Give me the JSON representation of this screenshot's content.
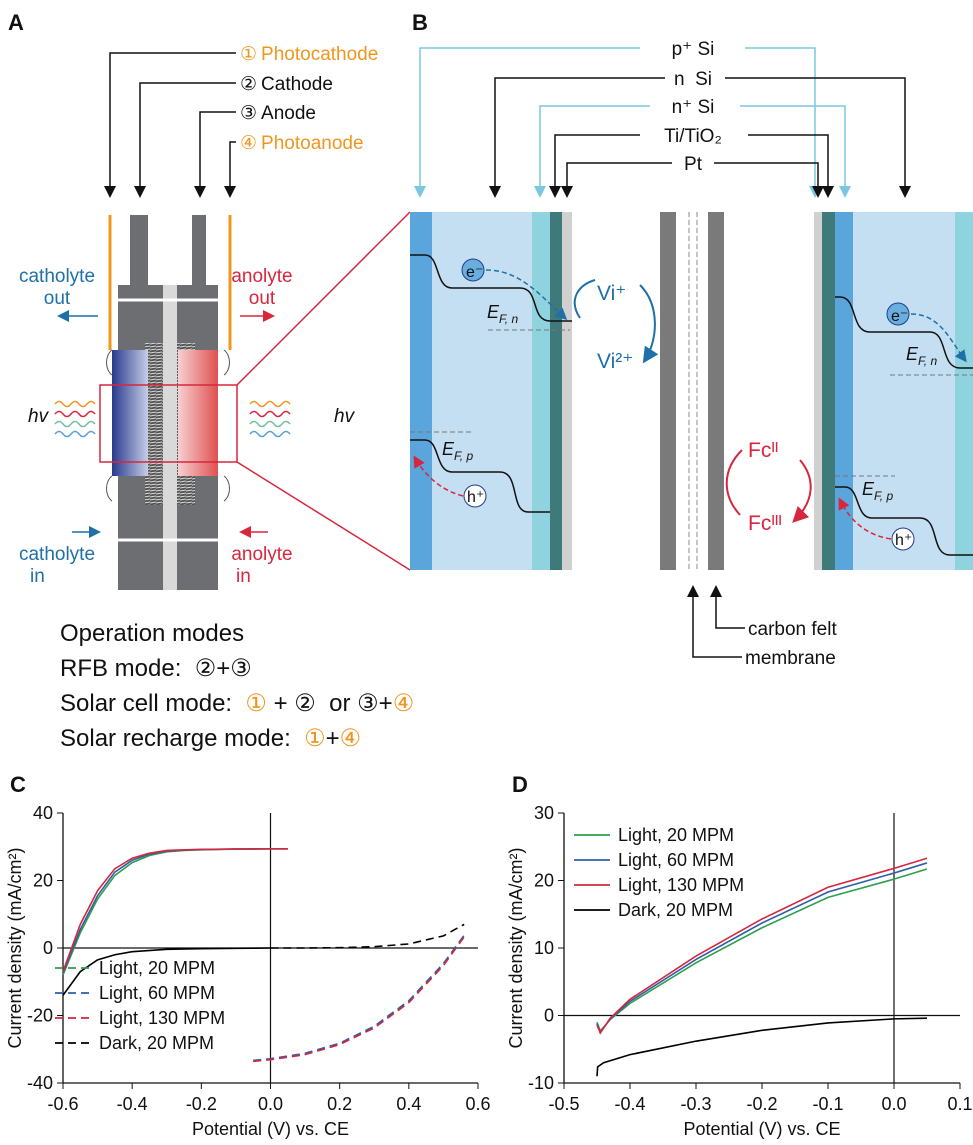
{
  "panel_a": {
    "label": "A",
    "electrodes": [
      {
        "number": "①",
        "name": "Photocathode"
      },
      {
        "number": "②",
        "name": "Cathode"
      },
      {
        "number": "③",
        "name": "Anode"
      },
      {
        "number": "④",
        "name": "Photoanode"
      }
    ],
    "catholyte_out": [
      "catholyte",
      "out"
    ],
    "anolyte_out": [
      "anolyte",
      "out"
    ],
    "catholyte_in": [
      "catholyte",
      "in"
    ],
    "anolyte_in": [
      "anolyte",
      "in"
    ],
    "light_left": "hv",
    "light_right": "hv"
  },
  "panel_b": {
    "label": "B",
    "layers": [
      "p⁺ Si",
      "n  Si",
      "n⁺ Si",
      "Ti/TiO₂",
      "Pt"
    ],
    "electron_left": "e⁻",
    "electron_right": "e⁻",
    "hole_left": "h⁺",
    "hole_right": "h⁺",
    "fermi_n_left": {
      "symbol": "E",
      "subscript": "F, n"
    },
    "fermi_p_left": {
      "symbol": "E",
      "subscript": "F, p"
    },
    "fermi_n_right": {
      "symbol": "E",
      "subscript": "F, n"
    },
    "fermi_p_right": {
      "symbol": "E",
      "subscript": "F, p"
    },
    "vi_plus": "Vi⁺",
    "vi_2plus": "Vi²⁺",
    "fc_ii": "Fcᴵᴵ",
    "fc_iii": "Fcᴵᴵᴵ",
    "carbon_felt": "carbon felt",
    "membrane": "membrane"
  },
  "operation_modes": {
    "title": "Operation modes",
    "modes": [
      [
        "RFB mode:  ",
        "②+③"
      ],
      [
        "Solar cell mode:  ",
        "①",
        " + ②  or ③+",
        "④"
      ],
      [
        "Solar recharge mode:  ",
        "①",
        "+",
        "④"
      ]
    ]
  },
  "chart_data": [
    {
      "type": "line",
      "panel_label": "C",
      "x_label": "Potential (V) vs. CE",
      "y_label": "Current density (mA/cm²)",
      "xlim": [
        -0.6,
        0.6
      ],
      "xticks": [
        -0.6,
        -0.4,
        -0.2,
        {
          "value": 0,
          "label": "0.0"
        },
        0.2,
        0.4,
        0.6
      ],
      "ylim": [
        -40,
        40
      ],
      "yticks": [
        -40,
        -20,
        0,
        20,
        40
      ],
      "zero_lines": true,
      "legend": "lower left",
      "series": [
        {
          "name": "Light, 20 MPM",
          "color": "#2e9e4f",
          "segments": [
            {
              "style": "solid",
              "x": [
                -0.6,
                -0.55,
                -0.5,
                -0.45,
                -0.4,
                -0.35,
                -0.3,
                -0.25,
                -0.2,
                -0.1,
                0,
                0.05
              ],
              "values": [
                -8,
                4.5,
                14.5,
                21.5,
                25.3,
                27.4,
                28.5,
                28.9,
                29.1,
                29.3,
                29.4,
                29.4
              ]
            },
            {
              "style": "dashed",
              "x": [
                -0.05,
                0,
                0.1,
                0.2,
                0.3,
                0.4,
                0.5,
                0.56
              ],
              "values": [
                -33.5,
                -33,
                -31.5,
                -28.5,
                -23.5,
                -16,
                -5,
                3.5
              ]
            }
          ]
        },
        {
          "name": "Light, 60 MPM",
          "color": "#2f5fa8",
          "segments": [
            {
              "style": "solid",
              "x": [
                -0.6,
                -0.55,
                -0.5,
                -0.45,
                -0.4,
                -0.35,
                -0.3,
                -0.25,
                -0.2,
                -0.1,
                0,
                0.05
              ],
              "values": [
                -7.5,
                5.5,
                15.5,
                22.5,
                26,
                27.8,
                28.7,
                29,
                29.2,
                29.3,
                29.4,
                29.4
              ]
            },
            {
              "style": "dashed",
              "x": [
                -0.05,
                0,
                0.1,
                0.2,
                0.3,
                0.4,
                0.5,
                0.56
              ],
              "values": [
                -33.3,
                -32.8,
                -31.2,
                -28.2,
                -23.2,
                -15.6,
                -4.6,
                3.8
              ]
            }
          ]
        },
        {
          "name": "Light, 130 MPM",
          "color": "#d7263d",
          "segments": [
            {
              "style": "solid",
              "x": [
                -0.6,
                -0.55,
                -0.5,
                -0.45,
                -0.4,
                -0.35,
                -0.3,
                -0.25,
                -0.2,
                -0.1,
                0,
                0.05
              ],
              "values": [
                -7,
                7,
                17,
                23.5,
                26.6,
                28.1,
                28.9,
                29.1,
                29.2,
                29.3,
                29.4,
                29.4
              ]
            },
            {
              "style": "dashed",
              "x": [
                -0.05,
                0,
                0.1,
                0.2,
                0.3,
                0.4,
                0.5,
                0.56
              ],
              "values": [
                -33.6,
                -33.1,
                -31.6,
                -28.6,
                -23.7,
                -16.2,
                -5.2,
                3.3
              ]
            }
          ]
        },
        {
          "name": "Dark, 20 MPM",
          "color": "#000000",
          "segments": [
            {
              "style": "solid",
              "x": [
                -0.6,
                -0.55,
                -0.5,
                -0.45,
                -0.4,
                -0.3,
                -0.2,
                -0.1,
                0
              ],
              "values": [
                -14,
                -7,
                -3.5,
                -2,
                -1.1,
                -0.4,
                -0.2,
                -0.1,
                0
              ]
            },
            {
              "style": "dashed",
              "x": [
                0,
                0.1,
                0.2,
                0.3,
                0.4,
                0.5,
                0.56
              ],
              "values": [
                0,
                0,
                0.1,
                0.4,
                1.2,
                3.6,
                7
              ]
            }
          ]
        }
      ]
    },
    {
      "type": "line",
      "panel_label": "D",
      "x_label": "Potential (V) vs. CE",
      "y_label": "Current density (mA/cm²)",
      "xlim": [
        -0.5,
        0.1
      ],
      "xticks": [
        -0.5,
        -0.4,
        -0.3,
        -0.2,
        -0.1,
        {
          "value": 0,
          "label": "0.0"
        },
        0.1
      ],
      "ylim": [
        -10,
        30
      ],
      "yticks": [
        -10,
        0,
        10,
        20,
        30
      ],
      "zero_lines": true,
      "legend": "upper left",
      "series": [
        {
          "name": "Light, 20 MPM",
          "color": "#2e9e4f",
          "segments": [
            {
              "style": "solid",
              "x": [
                -0.45,
                -0.445,
                -0.43,
                -0.4,
                -0.3,
                -0.2,
                -0.1,
                0,
                0.05
              ],
              "values": [
                -1,
                -2.3,
                -0.6,
                1.8,
                7.8,
                13,
                17.5,
                20.2,
                21.7
              ]
            }
          ]
        },
        {
          "name": "Light, 60 MPM",
          "color": "#2f5fa8",
          "segments": [
            {
              "style": "solid",
              "x": [
                -0.45,
                -0.445,
                -0.43,
                -0.4,
                -0.3,
                -0.2,
                -0.1,
                0,
                0.05
              ],
              "values": [
                -1.2,
                -2.5,
                -0.5,
                2.1,
                8.3,
                13.7,
                18.3,
                21.1,
                22.6
              ]
            }
          ]
        },
        {
          "name": "Light, 130 MPM",
          "color": "#d7263d",
          "segments": [
            {
              "style": "solid",
              "x": [
                -0.45,
                -0.445,
                -0.43,
                -0.4,
                -0.3,
                -0.2,
                -0.1,
                0,
                0.05
              ],
              "values": [
                -1.4,
                -2.6,
                -0.4,
                2.4,
                8.8,
                14.3,
                19,
                21.8,
                23.3
              ]
            }
          ]
        },
        {
          "name": "Dark, 20 MPM",
          "color": "#000000",
          "segments": [
            {
              "style": "solid",
              "x": [
                -0.45,
                -0.449,
                -0.44,
                -0.4,
                -0.3,
                -0.2,
                -0.1,
                0,
                0.05
              ],
              "values": [
                -9,
                -7.6,
                -7,
                -5.8,
                -3.8,
                -2.2,
                -1.1,
                -0.5,
                -0.4
              ]
            }
          ]
        }
      ]
    }
  ]
}
